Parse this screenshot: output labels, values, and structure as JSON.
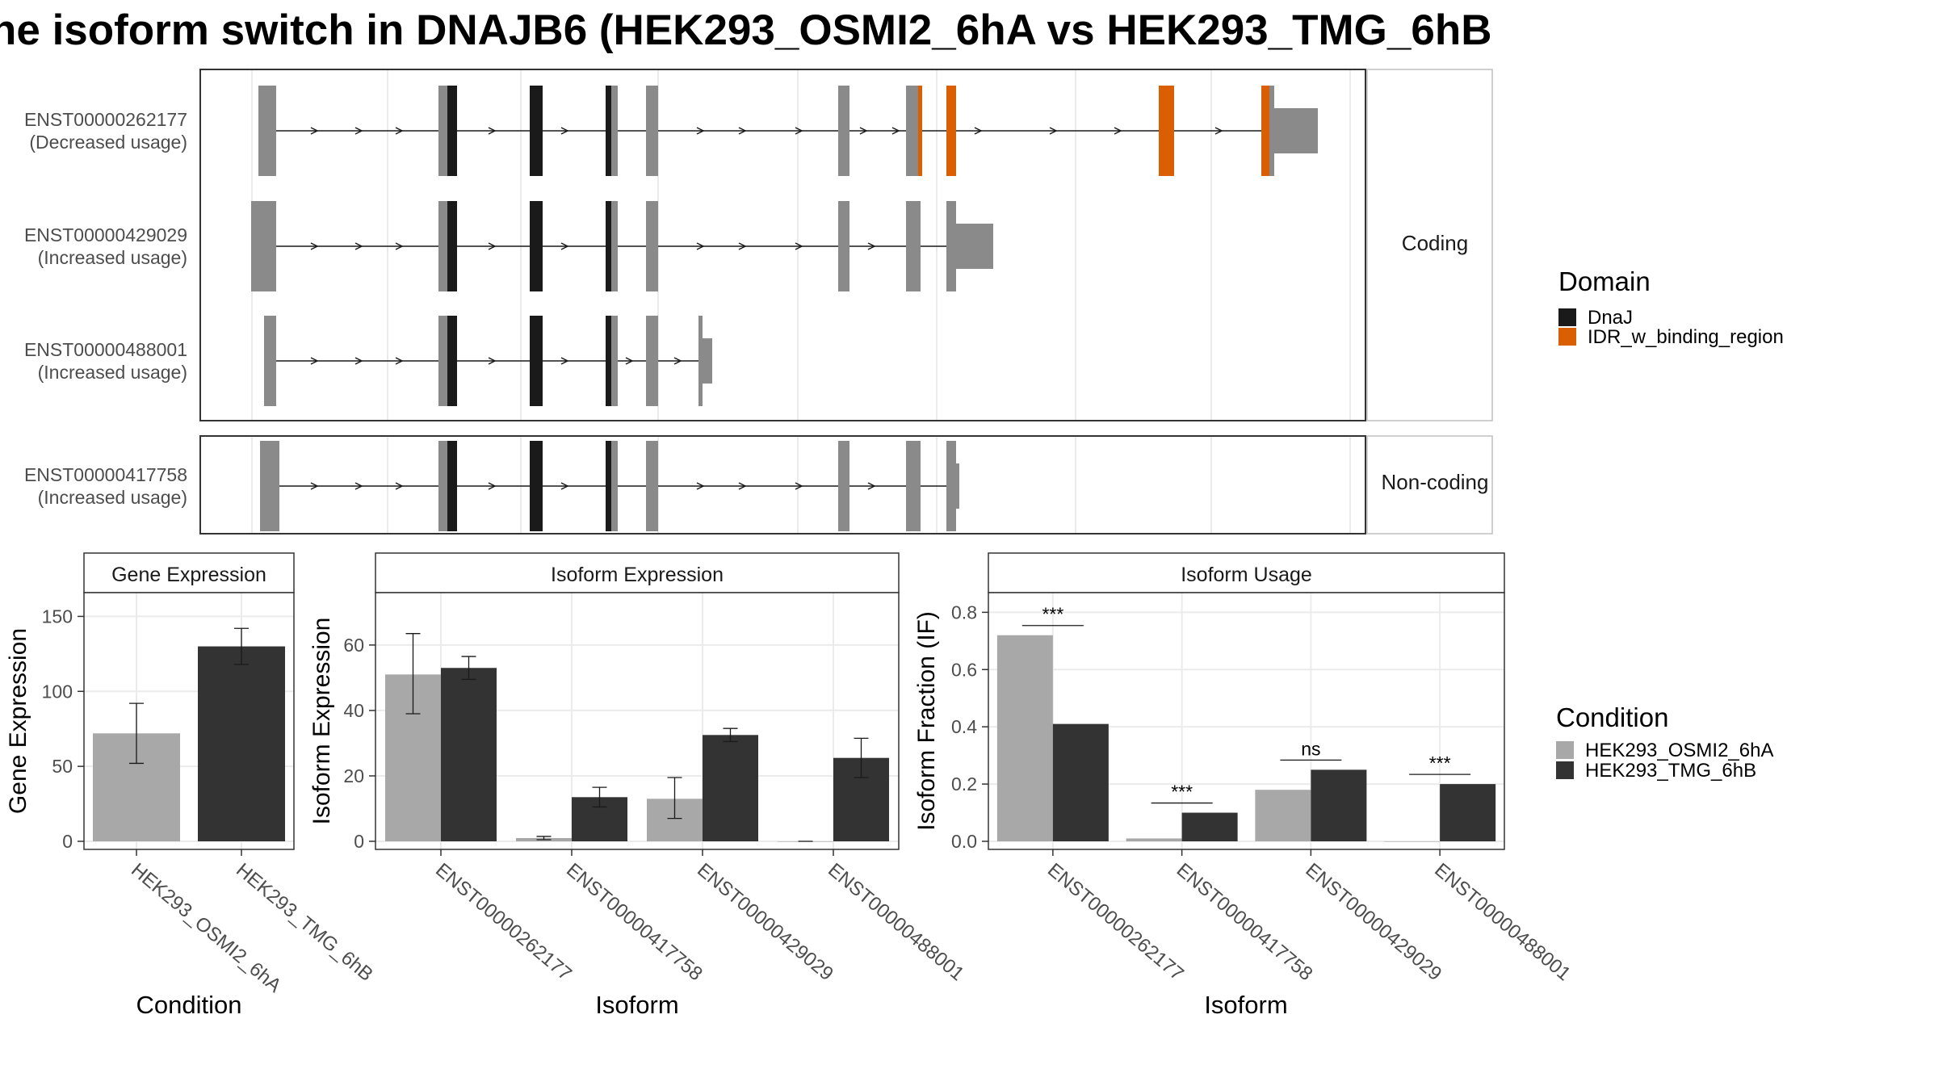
{
  "title": "he isoform switch in DNAJB6 (HEK293_OSMI2_6hA vs HEK293_TMG_6hB",
  "structure": {
    "coding_label": "Coding",
    "noncoding_label": "Non-coding",
    "transcripts": [
      {
        "id": "ENST00000262177",
        "usage": "(Decreased usage)"
      },
      {
        "id": "ENST00000429029",
        "usage": "(Increased usage)"
      },
      {
        "id": "ENST00000488001",
        "usage": "(Increased usage)"
      },
      {
        "id": "ENST00000417758",
        "usage": "(Increased usage)"
      }
    ]
  },
  "legends": {
    "domain": {
      "title": "Domain",
      "items": [
        {
          "label": "DnaJ",
          "color": "#1a1a1a"
        },
        {
          "label": "IDR_w_binding_region",
          "color": "#d95f02"
        }
      ]
    },
    "condition": {
      "title": "Condition",
      "items": [
        {
          "label": "HEK293_OSMI2_6hA",
          "color": "#a8a8a8"
        },
        {
          "label": "HEK293_TMG_6hB",
          "color": "#333333"
        }
      ]
    }
  },
  "chart_data": [
    {
      "type": "bar",
      "title": "Gene Expression",
      "xlabel": "Condition",
      "ylabel": "Gene Expression",
      "categories": [
        "HEK293_OSMI2_6hA",
        "HEK293_TMG_6hB"
      ],
      "values": [
        72,
        130
      ],
      "errors": [
        [
          52,
          92
        ],
        [
          118,
          142
        ]
      ],
      "yticks": [
        "0",
        "50",
        "100",
        "150"
      ],
      "ylim": [
        0,
        168
      ]
    },
    {
      "type": "bar",
      "title": "Isoform Expression",
      "xlabel": "Isoform",
      "ylabel": "Isoform Expression",
      "categories": [
        "ENST00000262177",
        "ENST00000417758",
        "ENST00000429029",
        "ENST00000488001"
      ],
      "series": [
        {
          "name": "HEK293_OSMI2_6hA",
          "values": [
            51,
            1,
            13,
            0
          ],
          "errors": [
            [
              39,
              63.5
            ],
            [
              0.5,
              1.5
            ],
            [
              7,
              19.5
            ],
            [
              0,
              0
            ]
          ]
        },
        {
          "name": "HEK293_TMG_6hB",
          "values": [
            53,
            13.5,
            32.5,
            25.5
          ],
          "errors": [
            [
              49.5,
              56.5
            ],
            [
              10.5,
              16.5
            ],
            [
              30.5,
              34.5
            ],
            [
              19.5,
              31.5
            ]
          ]
        }
      ],
      "yticks": [
        "0",
        "20",
        "40",
        "60"
      ],
      "ylim": [
        0,
        77
      ]
    },
    {
      "type": "bar",
      "title": "Isoform Usage",
      "xlabel": "Isoform",
      "ylabel": "Isoform Fraction (IF)",
      "categories": [
        "ENST00000262177",
        "ENST00000417758",
        "ENST00000429029",
        "ENST00000488001"
      ],
      "series": [
        {
          "name": "HEK293_OSMI2_6hA",
          "values": [
            0.72,
            0.01,
            0.18,
            0.0
          ]
        },
        {
          "name": "HEK293_TMG_6hB",
          "values": [
            0.41,
            0.1,
            0.25,
            0.2
          ]
        }
      ],
      "significance": [
        "***",
        "***",
        "ns",
        "***"
      ],
      "yticks": [
        "0.0",
        "0.2",
        "0.4",
        "0.6",
        "0.8"
      ],
      "ylim": [
        0,
        0.88
      ]
    }
  ]
}
